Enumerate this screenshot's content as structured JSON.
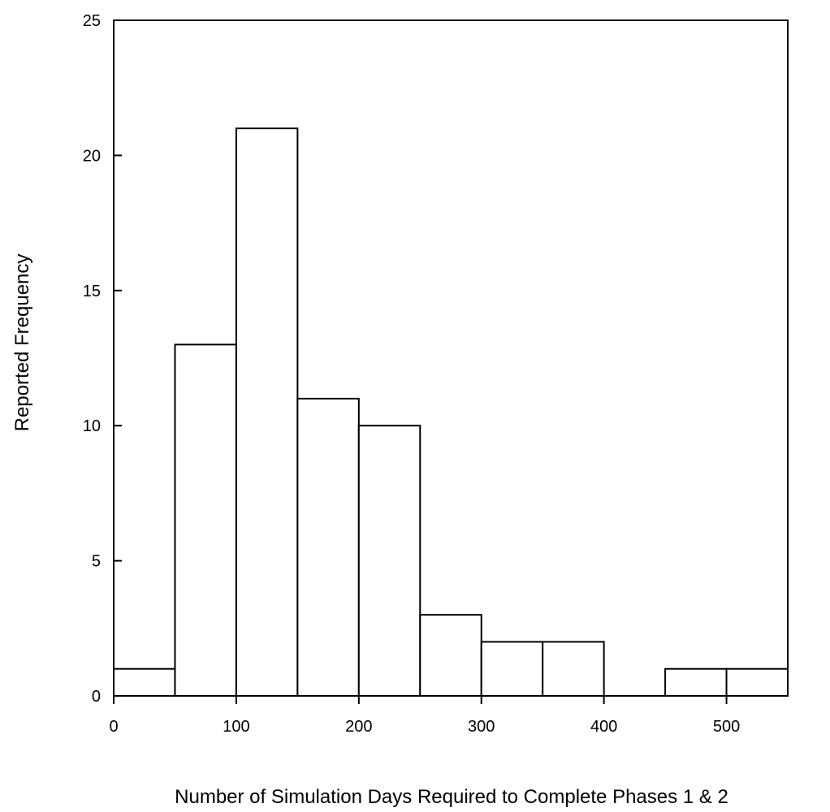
{
  "chart_data": {
    "type": "bar",
    "subtype": "histogram",
    "title": "",
    "xlabel": "Number of Simulation Days Required to Complete Phases 1 & 2",
    "ylabel": "Reported Frequency",
    "xlim": [
      0,
      550
    ],
    "ylim": [
      0,
      25
    ],
    "bin_width": 50,
    "bins": [
      {
        "start": 0,
        "end": 50,
        "value": 1
      },
      {
        "start": 50,
        "end": 100,
        "value": 13
      },
      {
        "start": 100,
        "end": 150,
        "value": 21
      },
      {
        "start": 150,
        "end": 200,
        "value": 11
      },
      {
        "start": 200,
        "end": 250,
        "value": 10
      },
      {
        "start": 250,
        "end": 300,
        "value": 3
      },
      {
        "start": 300,
        "end": 350,
        "value": 2
      },
      {
        "start": 350,
        "end": 400,
        "value": 2
      },
      {
        "start": 400,
        "end": 450,
        "value": 0
      },
      {
        "start": 450,
        "end": 500,
        "value": 1
      },
      {
        "start": 500,
        "end": 550,
        "value": 1
      }
    ],
    "xticks": [
      0,
      100,
      200,
      300,
      400,
      500
    ],
    "yticks": [
      0,
      5,
      10,
      15,
      20,
      25
    ],
    "grid": false,
    "legend": "none",
    "bar_fill": "#ffffff",
    "bar_stroke": "#000000"
  }
}
